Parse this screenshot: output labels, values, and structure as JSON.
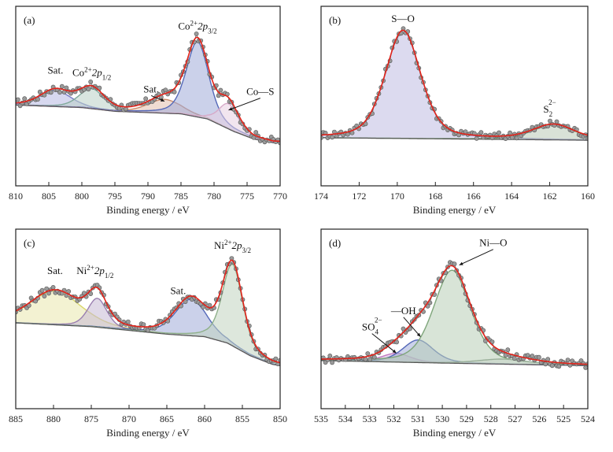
{
  "chart_data": [
    {
      "type": "line",
      "panel_label": "(a)",
      "xlabel": "Binding energy / eV",
      "xlim": [
        810,
        770
      ],
      "x_ticks": [
        810,
        805,
        800,
        795,
        790,
        785,
        780,
        775,
        770
      ],
      "x_tick_labels": [
        "810",
        "805",
        "800",
        "795",
        "790",
        "785",
        "780",
        "775",
        "770"
      ],
      "y_ticks": [],
      "baseline": [
        [
          810,
          0.3
        ],
        [
          800,
          0.28
        ],
        [
          795,
          0.25
        ],
        [
          790,
          0.24
        ],
        [
          785,
          0.23
        ],
        [
          781,
          0.19
        ],
        [
          777,
          0.09
        ],
        [
          774,
          0.03
        ],
        [
          771,
          0.0
        ],
        [
          770,
          0.0
        ]
      ],
      "peaks": [
        {
          "center": 804.0,
          "fwhm": 5.5,
          "height": 0.13,
          "color": "#7a7ec8"
        },
        {
          "center": 798.5,
          "fwhm": 4.5,
          "height": 0.16,
          "color": "#7fa89a"
        },
        {
          "center": 787.5,
          "fwhm": 6.0,
          "height": 0.11,
          "color": "#c98a6a"
        },
        {
          "center": 782.5,
          "fwhm": 4.0,
          "height": 0.6,
          "color": "#5468b8"
        },
        {
          "center": 777.8,
          "fwhm": 3.5,
          "height": 0.2,
          "color": "#d6a9c8"
        }
      ],
      "annotations": [
        {
          "text": "Sat.",
          "x": 804.0,
          "y": 0.55
        },
        {
          "text": "Co",
          "sup": "2+",
          "rest": "2p",
          "sub": "1/2",
          "x": 798.5,
          "y": 0.53
        },
        {
          "text": "Sat.",
          "x": 789.5,
          "y": 0.4,
          "arrow_to": [
            787.5,
            0.33
          ]
        },
        {
          "text": "Co",
          "sup": "2+",
          "rest": "2p",
          "sub": "3/2",
          "x": 782.5,
          "y": 0.9
        },
        {
          "text": "Co—S",
          "x": 773.0,
          "y": 0.38,
          "arrow_to": [
            777.8,
            0.26
          ]
        }
      ]
    },
    {
      "type": "line",
      "panel_label": "(b)",
      "xlabel": "Binding energy / eV",
      "xlim": [
        174,
        160
      ],
      "x_ticks": [
        174,
        172,
        170,
        168,
        166,
        164,
        162,
        160
      ],
      "x_tick_labels": [
        "174",
        "172",
        "170",
        "168",
        "166",
        "164",
        "162",
        "160"
      ],
      "y_ticks": [],
      "baseline": [
        [
          174,
          0.04
        ],
        [
          160,
          0.02
        ]
      ],
      "peaks": [
        {
          "center": 169.7,
          "fwhm": 2.2,
          "height": 0.86,
          "color": "#8c86c8"
        },
        {
          "center": 161.8,
          "fwhm": 2.6,
          "height": 0.12,
          "color": "#7fa07a"
        }
      ],
      "annotations": [
        {
          "text": "S—O",
          "x": 169.7,
          "y": 0.96
        },
        {
          "text": "S",
          "sub": "2",
          "sup": "2−",
          "x": 162.0,
          "y": 0.24
        }
      ]
    },
    {
      "type": "line",
      "panel_label": "(c)",
      "xlabel": "Binding energy / eV",
      "xlim": [
        885,
        850
      ],
      "x_ticks": [
        885,
        880,
        875,
        870,
        865,
        860,
        855,
        850
      ],
      "x_tick_labels": [
        "885",
        "880",
        "875",
        "870",
        "865",
        "860",
        "855",
        "850"
      ],
      "y_ticks": [],
      "baseline": [
        [
          885,
          0.34
        ],
        [
          875,
          0.31
        ],
        [
          870,
          0.28
        ],
        [
          865,
          0.25
        ],
        [
          860,
          0.23
        ],
        [
          857,
          0.18
        ],
        [
          854,
          0.08
        ],
        [
          851,
          0.01
        ],
        [
          850,
          0.0
        ]
      ],
      "peaks": [
        {
          "center": 879.8,
          "fwhm": 8.0,
          "height": 0.27,
          "color": "#d9d66a"
        },
        {
          "center": 874.2,
          "fwhm": 3.0,
          "height": 0.23,
          "color": "#9a7fb0"
        },
        {
          "center": 861.8,
          "fwhm": 5.0,
          "height": 0.29,
          "color": "#5468b8"
        },
        {
          "center": 856.3,
          "fwhm": 3.2,
          "height": 0.65,
          "color": "#8fb08a"
        }
      ],
      "annotations": [
        {
          "text": "Sat.",
          "x": 879.8,
          "y": 0.73
        },
        {
          "text": "Ni",
          "sup": "2+",
          "rest": "2p",
          "sub": "1/2",
          "x": 874.5,
          "y": 0.73
        },
        {
          "text": "Sat.",
          "x": 863.5,
          "y": 0.57
        },
        {
          "text": "Ni",
          "sup": "2+",
          "rest": "2p",
          "sub": "3/2",
          "x": 856.3,
          "y": 0.93
        }
      ]
    },
    {
      "type": "line",
      "panel_label": "(d)",
      "xlabel": "Binding energy / eV",
      "xlim": [
        535,
        524
      ],
      "x_ticks": [
        535,
        534,
        533,
        532,
        531,
        530,
        529,
        528,
        527,
        526,
        525,
        524
      ],
      "x_tick_labels": [
        "535",
        "534",
        "533",
        "532",
        "531",
        "530",
        "529",
        "528",
        "527",
        "526",
        "525",
        "524"
      ],
      "y_ticks": [],
      "baseline": [
        [
          535,
          0.04
        ],
        [
          530,
          0.02
        ],
        [
          524,
          0.0
        ]
      ],
      "peaks": [
        {
          "center": 531.9,
          "fwhm": 1.4,
          "height": 0.07,
          "color": "#c07ac0"
        },
        {
          "center": 531.0,
          "fwhm": 1.5,
          "height": 0.18,
          "color": "#5468b8"
        },
        {
          "center": 529.6,
          "fwhm": 1.8,
          "height": 0.74,
          "color": "#7ea57a"
        },
        {
          "center": 527.5,
          "fwhm": 2.5,
          "height": 0.04,
          "color": "#9ab09a"
        }
      ],
      "annotations": [
        {
          "text": "Ni—O",
          "x": 527.9,
          "y": 0.95,
          "arrow_to": [
            529.3,
            0.8
          ]
        },
        {
          "text": "—OH",
          "x": 531.6,
          "y": 0.41,
          "arrow_to": [
            530.9,
            0.23
          ]
        },
        {
          "text": "SO",
          "sub": "4",
          "sup": "2−",
          "x": 532.9,
          "y": 0.28,
          "arrow_to": [
            531.9,
            0.1
          ]
        }
      ]
    }
  ]
}
